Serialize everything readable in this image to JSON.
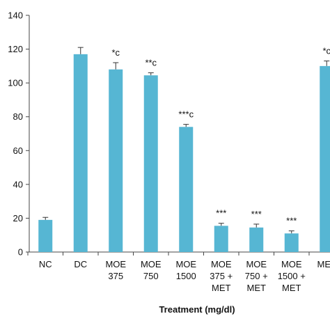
{
  "chart_data": {
    "type": "bar",
    "xlabel": "Treatment (mg/dl)",
    "ylabel": "",
    "ylim": [
      0,
      140
    ],
    "yticks": [
      0,
      20,
      40,
      60,
      80,
      100,
      120,
      140
    ],
    "grid": false,
    "bar_color": "#56b6d3",
    "categories": [
      [
        "NC"
      ],
      [
        "DC"
      ],
      [
        "MOE",
        "375"
      ],
      [
        "MOE",
        "750"
      ],
      [
        "MOE",
        "1500"
      ],
      [
        "MOE",
        "375 +",
        "MET"
      ],
      [
        "MOE",
        "750 +",
        "MET"
      ],
      [
        "MOE",
        "1500 +",
        "MET"
      ],
      [
        "MET"
      ]
    ],
    "values": [
      19,
      117,
      108,
      104.5,
      74,
      15.5,
      14.5,
      11,
      110
    ],
    "errors": [
      1.5,
      4,
      4,
      1.5,
      1.5,
      1.5,
      2,
      1.5,
      3
    ],
    "annotations": [
      "",
      "",
      "*c",
      "**c",
      "***c",
      "***",
      "***",
      "***",
      "*c"
    ]
  }
}
